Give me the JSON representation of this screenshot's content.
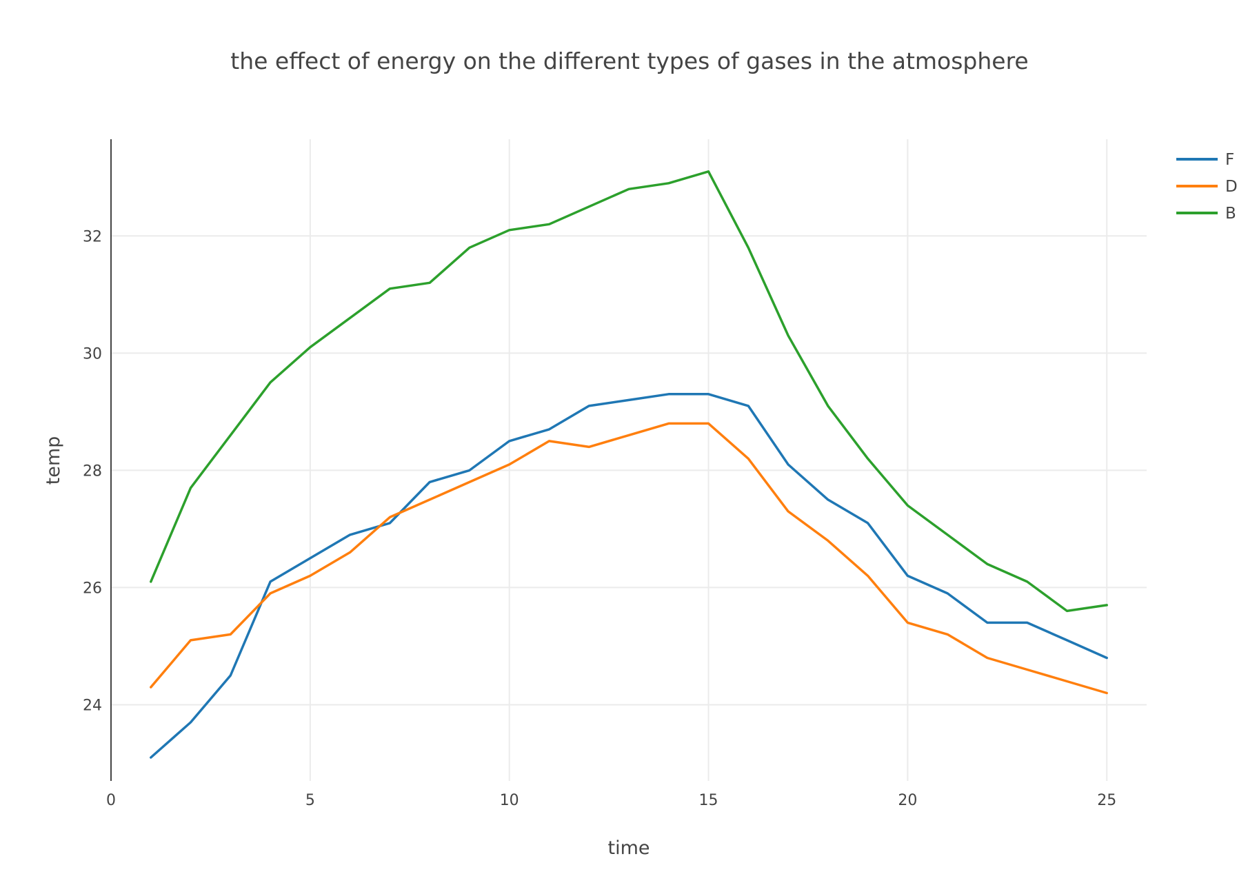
{
  "chart_data": {
    "type": "line",
    "title": "the effect of energy on the different types of gases in the atmosphere",
    "xlabel": "time",
    "ylabel": "temp",
    "xlim": [
      0,
      26
    ],
    "ylim": [
      22.7,
      33.65
    ],
    "xticks": [
      0,
      5,
      10,
      15,
      20,
      25
    ],
    "yticks": [
      24,
      26,
      28,
      30,
      32
    ],
    "grid": true,
    "legend_position": "top-right",
    "x": [
      1,
      2,
      3,
      4,
      5,
      6,
      7,
      8,
      9,
      10,
      11,
      12,
      13,
      14,
      15,
      16,
      17,
      18,
      19,
      20,
      21,
      22,
      23,
      24,
      25
    ],
    "series": [
      {
        "name": "F",
        "color": "#1f77b4",
        "values": [
          23.1,
          23.7,
          24.5,
          26.1,
          26.5,
          26.9,
          27.1,
          27.8,
          28.0,
          28.5,
          28.7,
          29.1,
          29.2,
          29.3,
          29.3,
          29.1,
          28.1,
          27.5,
          27.1,
          26.2,
          25.9,
          25.4,
          25.4,
          25.1,
          24.8
        ]
      },
      {
        "name": "D",
        "color": "#ff7f0e",
        "values": [
          24.3,
          25.1,
          25.2,
          25.9,
          26.2,
          26.6,
          27.2,
          27.5,
          27.8,
          28.1,
          28.5,
          28.4,
          28.6,
          28.8,
          28.8,
          28.2,
          27.3,
          26.8,
          26.2,
          25.4,
          25.2,
          24.8,
          24.6,
          24.4,
          24.2
        ]
      },
      {
        "name": "B",
        "color": "#2ca02c",
        "values": [
          26.1,
          27.7,
          28.6,
          29.5,
          30.1,
          30.6,
          31.1,
          31.2,
          31.8,
          32.1,
          32.2,
          32.5,
          32.8,
          32.9,
          33.1,
          31.8,
          30.3,
          29.1,
          28.2,
          27.4,
          26.9,
          26.4,
          26.1,
          25.6,
          25.7
        ]
      }
    ]
  }
}
